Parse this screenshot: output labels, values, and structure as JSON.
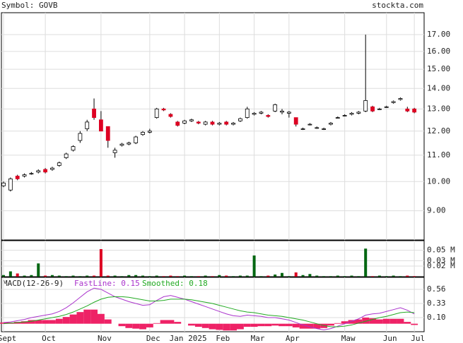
{
  "chart_data": [
    {
      "type": "candlestick",
      "title": "Symbol: GOVB",
      "source": "stockta.com",
      "categories": [
        "Sept",
        null,
        null,
        null,
        null,
        null,
        "Oct",
        null,
        null,
        null,
        null,
        null,
        null,
        null,
        "Nov",
        null,
        null,
        null,
        null,
        null,
        null,
        "Dec",
        null,
        null,
        null,
        null,
        "Jan 2025",
        null,
        null,
        null,
        null,
        "Feb",
        null,
        null,
        null,
        null,
        "Mar",
        null,
        null,
        null,
        null,
        "Apr",
        null,
        null,
        null,
        null,
        null,
        null,
        null,
        "Maw",
        null,
        null,
        null,
        null,
        null,
        "Jun",
        null,
        null,
        null,
        "Jul"
      ],
      "ohlc": [
        [
          9.85,
          10.0,
          9.8,
          9.95
        ],
        [
          9.7,
          10.15,
          9.65,
          10.1
        ],
        [
          10.2,
          10.25,
          10.05,
          10.1
        ],
        [
          10.2,
          10.3,
          10.15,
          10.25
        ],
        [
          10.3,
          10.35,
          10.25,
          10.3
        ],
        [
          10.35,
          10.45,
          10.3,
          10.4
        ],
        [
          10.45,
          10.5,
          10.3,
          10.35
        ],
        [
          10.45,
          10.55,
          10.4,
          10.5
        ],
        [
          10.6,
          10.75,
          10.55,
          10.7
        ],
        [
          10.9,
          11.1,
          10.85,
          11.05
        ],
        [
          11.2,
          11.4,
          11.15,
          11.35
        ],
        [
          11.6,
          12.0,
          11.5,
          11.9
        ],
        [
          12.1,
          12.5,
          12.0,
          12.4
        ],
        [
          13.0,
          13.5,
          12.5,
          12.6
        ],
        [
          12.5,
          12.9,
          12.0,
          12.0
        ],
        [
          12.2,
          12.2,
          11.3,
          11.6
        ],
        [
          11.1,
          11.3,
          10.9,
          11.2
        ],
        [
          11.4,
          11.5,
          11.35,
          11.45
        ],
        [
          11.45,
          11.55,
          11.4,
          11.5
        ],
        [
          11.5,
          11.8,
          11.45,
          11.75
        ],
        [
          11.85,
          12.0,
          11.8,
          11.95
        ],
        [
          11.95,
          12.1,
          11.9,
          12.0
        ],
        [
          12.6,
          13.05,
          12.55,
          13.0
        ],
        [
          13.0,
          13.05,
          12.9,
          12.95
        ],
        [
          12.75,
          12.8,
          12.6,
          12.65
        ],
        [
          12.4,
          12.45,
          12.2,
          12.25
        ],
        [
          12.35,
          12.5,
          12.3,
          12.45
        ],
        [
          12.45,
          12.55,
          12.4,
          12.5
        ],
        [
          12.4,
          12.45,
          12.3,
          12.35
        ],
        [
          12.3,
          12.45,
          12.25,
          12.4
        ],
        [
          12.4,
          12.45,
          12.25,
          12.3
        ],
        [
          12.3,
          12.4,
          12.25,
          12.35
        ],
        [
          12.4,
          12.45,
          12.25,
          12.3
        ],
        [
          12.3,
          12.4,
          12.25,
          12.35
        ],
        [
          12.45,
          12.6,
          12.4,
          12.55
        ],
        [
          12.6,
          13.1,
          12.55,
          13.0
        ],
        [
          12.75,
          12.85,
          12.7,
          12.8
        ],
        [
          12.8,
          12.9,
          12.75,
          12.85
        ],
        [
          12.7,
          12.75,
          12.6,
          12.65
        ],
        [
          12.9,
          13.25,
          12.85,
          13.2
        ],
        [
          12.85,
          13.0,
          12.75,
          12.9
        ],
        [
          12.8,
          12.9,
          12.6,
          12.85
        ],
        [
          12.6,
          12.6,
          12.2,
          12.3
        ],
        [
          12.1,
          12.15,
          12.05,
          12.1
        ],
        [
          12.3,
          12.35,
          12.25,
          12.3
        ],
        [
          12.15,
          12.2,
          12.1,
          12.15
        ],
        [
          12.1,
          12.15,
          12.05,
          12.1
        ],
        [
          12.3,
          12.4,
          12.25,
          12.35
        ],
        [
          12.6,
          12.65,
          12.55,
          12.6
        ],
        [
          12.7,
          12.75,
          12.65,
          12.7
        ],
        [
          12.75,
          12.85,
          12.7,
          12.8
        ],
        [
          12.8,
          12.9,
          12.75,
          12.85
        ],
        [
          12.9,
          17.0,
          12.85,
          13.4
        ],
        [
          13.1,
          13.15,
          12.85,
          12.9
        ],
        [
          13.0,
          13.05,
          12.95,
          13.0
        ],
        [
          13.1,
          13.15,
          13.05,
          13.1
        ],
        [
          13.3,
          13.4,
          13.25,
          13.35
        ],
        [
          13.45,
          13.55,
          13.4,
          13.5
        ],
        [
          13.0,
          13.1,
          12.85,
          12.9
        ],
        [
          13.0,
          13.05,
          12.8,
          12.85
        ]
      ],
      "up_color": "#ffffff",
      "down_color": "#dd0022",
      "log": true,
      "ylim": [
        8.1,
        18.4
      ],
      "yticks": [
        {
          "value": 9,
          "label": "9.00"
        },
        {
          "value": 10,
          "label": "10.00"
        },
        {
          "value": 11,
          "label": "11.00"
        },
        {
          "value": 12,
          "label": "12.00"
        },
        {
          "value": 13,
          "label": "13.00"
        },
        {
          "value": 14,
          "label": "14.00"
        },
        {
          "value": 15,
          "label": "15.00"
        },
        {
          "value": 16,
          "label": "16.00"
        },
        {
          "value": 17,
          "label": "17.00"
        }
      ],
      "grid": true
    },
    {
      "type": "volume",
      "values": [
        0.003,
        0.01,
        0.006,
        0.002,
        0.003,
        0.025,
        0.002,
        0.003,
        0.002,
        0.001,
        0.002,
        0.001,
        0.002,
        0.002,
        0.052,
        0.002,
        0.002,
        0.001,
        0.003,
        0.003,
        0.002,
        0.001,
        0.002,
        0.001,
        0.002,
        0.001,
        0.002,
        0.001,
        0.001,
        0.002,
        0.001,
        0.003,
        0.002,
        0.001,
        0.002,
        0.002,
        0.04,
        0.001,
        0.002,
        0.004,
        0.007,
        0.001,
        0.008,
        0.003,
        0.005,
        0.002,
        0.001,
        0.001,
        0.002,
        0.001,
        0.002,
        0.001,
        0.053,
        0.001,
        0.002,
        0.001,
        0.002,
        0.001,
        0.002,
        0.001
      ],
      "up_color": "#006611",
      "down_color": "#dd0022",
      "ylim": [
        0,
        0.068
      ],
      "yticks": [
        {
          "value": 0.02,
          "label": "0.02 M"
        },
        {
          "value": 0.03,
          "label": "0.03 M"
        },
        {
          "value": 0.05,
          "label": "0.05 M"
        }
      ],
      "grid": true
    },
    {
      "type": "macd",
      "title": "MACD(12-26-9)",
      "series": [
        {
          "name": "FastLine: 0.15",
          "color": "#aa33cc",
          "values": [
            0.02,
            0.03,
            0.05,
            0.07,
            0.1,
            0.12,
            0.14,
            0.16,
            0.2,
            0.26,
            0.34,
            0.43,
            0.52,
            0.58,
            0.56,
            0.5,
            0.44,
            0.4,
            0.36,
            0.33,
            0.3,
            0.31,
            0.38,
            0.44,
            0.46,
            0.43,
            0.4,
            0.36,
            0.32,
            0.28,
            0.24,
            0.2,
            0.16,
            0.13,
            0.12,
            0.14,
            0.13,
            0.12,
            0.1,
            0.1,
            0.08,
            0.06,
            0.02,
            -0.02,
            -0.05,
            -0.08,
            -0.1,
            -0.08,
            -0.04,
            0.0,
            0.04,
            0.08,
            0.14,
            0.16,
            0.17,
            0.2,
            0.23,
            0.26,
            0.22,
            0.16
          ]
        },
        {
          "name": "Smoothed: 0.18",
          "color": "#22aa22",
          "values": [
            0.0,
            0.01,
            0.02,
            0.03,
            0.04,
            0.06,
            0.08,
            0.1,
            0.12,
            0.15,
            0.19,
            0.24,
            0.29,
            0.35,
            0.4,
            0.43,
            0.44,
            0.44,
            0.43,
            0.41,
            0.39,
            0.37,
            0.37,
            0.38,
            0.4,
            0.4,
            0.4,
            0.39,
            0.37,
            0.35,
            0.33,
            0.3,
            0.27,
            0.24,
            0.21,
            0.19,
            0.18,
            0.16,
            0.14,
            0.13,
            0.12,
            0.1,
            0.08,
            0.06,
            0.03,
            0.0,
            -0.03,
            -0.05,
            -0.05,
            -0.04,
            -0.02,
            0.01,
            0.04,
            0.07,
            0.1,
            0.12,
            0.15,
            0.18,
            0.19,
            0.18
          ]
        }
      ],
      "histogram": {
        "color": "#ee2266",
        "values": [
          0.02,
          0.02,
          0.03,
          0.04,
          0.06,
          0.06,
          0.06,
          0.06,
          0.08,
          0.11,
          0.15,
          0.19,
          0.23,
          0.23,
          0.16,
          0.07,
          0,
          -0.04,
          -0.07,
          -0.08,
          -0.09,
          -0.06,
          0.01,
          0.06,
          0.06,
          0.03,
          0,
          -0.03,
          -0.05,
          -0.07,
          -0.09,
          -0.1,
          -0.11,
          -0.11,
          -0.09,
          -0.05,
          -0.05,
          -0.04,
          -0.04,
          -0.03,
          -0.04,
          -0.04,
          -0.06,
          -0.08,
          -0.08,
          -0.08,
          -0.07,
          -0.03,
          0.01,
          0.04,
          0.06,
          0.07,
          0.1,
          0.09,
          0.07,
          0.08,
          0.08,
          0.08,
          0.03,
          -0.02
        ]
      },
      "ylim": [
        -0.13,
        0.755
      ],
      "yticks": [
        {
          "value": 0.1,
          "label": "0.10"
        },
        0.33,
        0.56
      ],
      "grid": true
    }
  ]
}
